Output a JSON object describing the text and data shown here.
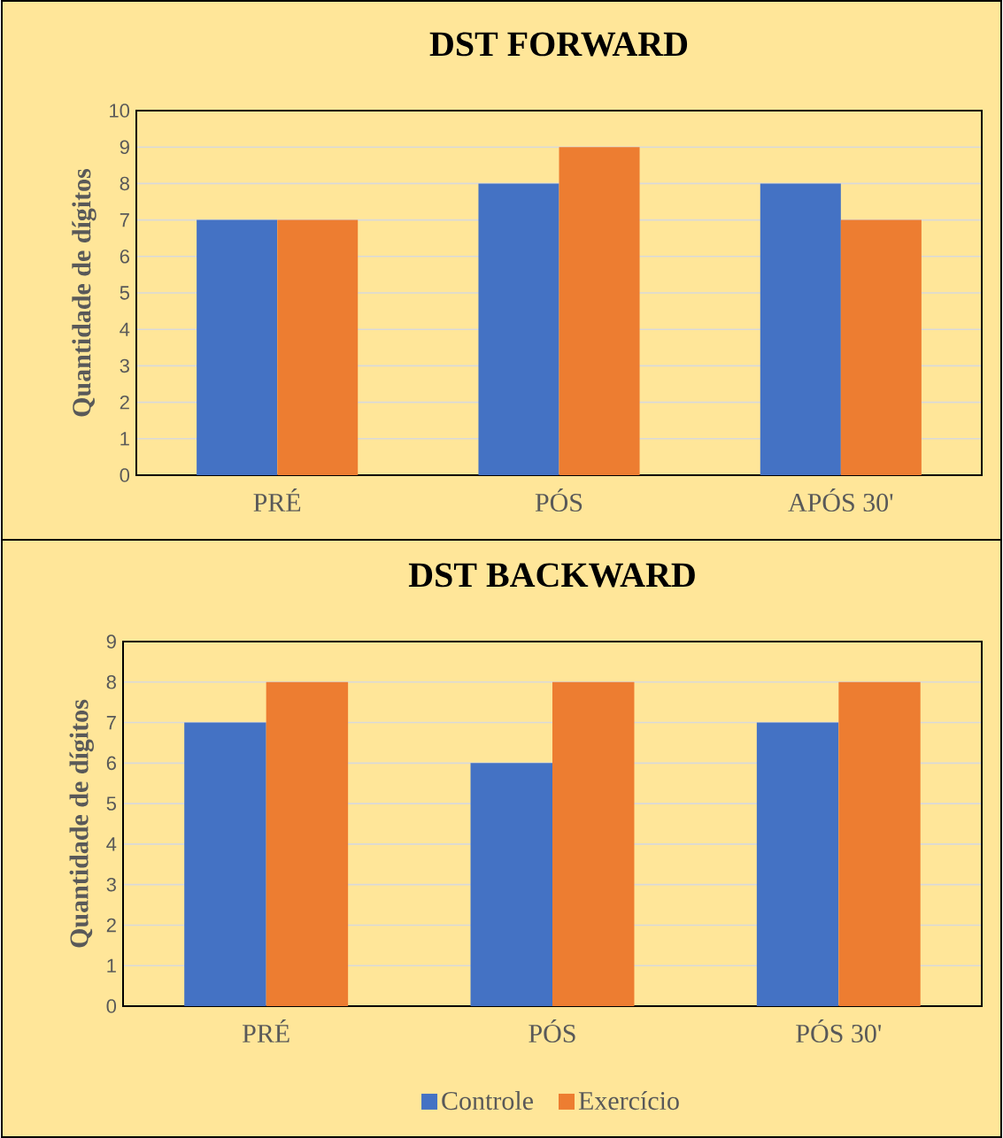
{
  "chart_data": [
    {
      "type": "bar",
      "title": "DST FORWARD",
      "ylabel": "Quantidade de dígitos",
      "categories": [
        "PRÉ",
        "PÓS",
        "APÓS 30'"
      ],
      "series": [
        {
          "color": "#4472c4",
          "values": [
            7,
            8,
            8
          ]
        },
        {
          "color": "#ed7d31",
          "values": [
            7,
            9,
            7
          ]
        }
      ],
      "ylim": [
        0,
        10
      ],
      "yticks": [
        0,
        1,
        2,
        3,
        4,
        5,
        6,
        7,
        8,
        9,
        10
      ],
      "grid": "y"
    },
    {
      "type": "bar",
      "title": "DST BACKWARD",
      "ylabel": "Quantidade de dígitos",
      "categories": [
        "PRÉ",
        "PÓS",
        "PÓS 30'"
      ],
      "series": [
        {
          "name": "Controle",
          "color": "#4472c4",
          "values": [
            7,
            6,
            7
          ]
        },
        {
          "name": "Exercício",
          "color": "#ed7d31",
          "values": [
            8,
            8,
            8
          ]
        }
      ],
      "ylim": [
        0,
        9
      ],
      "yticks": [
        0,
        1,
        2,
        3,
        4,
        5,
        6,
        7,
        8,
        9
      ],
      "grid": "y",
      "legend": "bottom"
    }
  ]
}
